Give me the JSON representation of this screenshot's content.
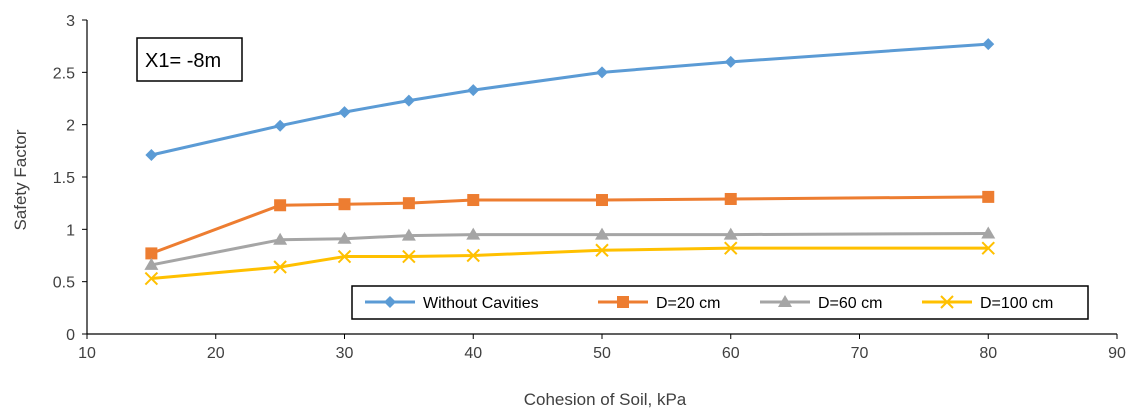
{
  "chart_data": {
    "type": "line",
    "xlabel": "Cohesion of Soil, kPa",
    "ylabel": "Safety Factor",
    "xlim": [
      10,
      90
    ],
    "ylim": [
      0,
      3
    ],
    "xticks": [
      "10",
      "20",
      "30",
      "40",
      "50",
      "60",
      "70",
      "80",
      "90"
    ],
    "yticks": [
      "0",
      "0.5",
      "1",
      "1.5",
      "2",
      "2.5",
      "3"
    ],
    "grid": false,
    "legend_position": "bottom-right",
    "annotation": "X1= -8m",
    "x": [
      15,
      25,
      30,
      35,
      40,
      50,
      60,
      80
    ],
    "series": [
      {
        "name": "Without Cavities",
        "marker": "diamond",
        "color": "#5B9BD5",
        "values": [
          1.71,
          1.99,
          2.12,
          2.23,
          2.33,
          2.5,
          2.6,
          2.77
        ]
      },
      {
        "name": "D=20 cm",
        "marker": "square",
        "color": "#ED7D31",
        "values": [
          0.77,
          1.23,
          1.24,
          1.25,
          1.28,
          1.28,
          1.29,
          1.31
        ]
      },
      {
        "name": "D=60 cm",
        "marker": "triangle",
        "color": "#A5A5A5",
        "values": [
          0.66,
          0.9,
          0.91,
          0.94,
          0.95,
          0.95,
          0.95,
          0.96
        ]
      },
      {
        "name": "D=100 cm",
        "marker": "x",
        "color": "#FFC000",
        "values": [
          0.53,
          0.64,
          0.74,
          0.74,
          0.75,
          0.8,
          0.82,
          0.82
        ]
      }
    ]
  }
}
